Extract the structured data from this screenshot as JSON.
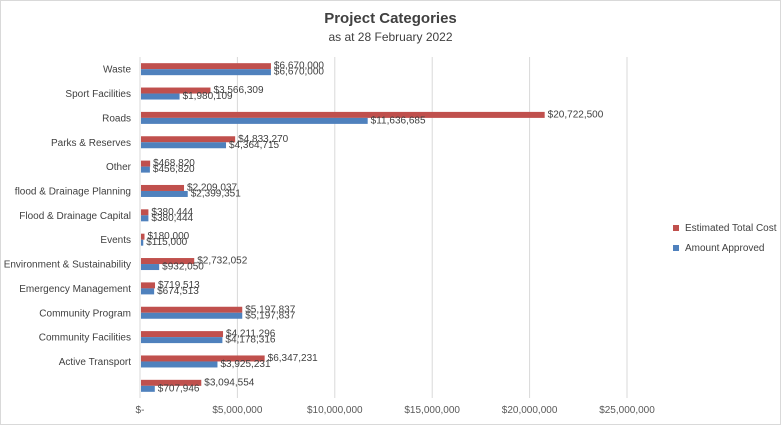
{
  "chart_data": {
    "type": "bar",
    "orientation": "horizontal",
    "title": "Project Categories",
    "subtitle": "as at 28 February 2022",
    "categories": [
      "Waste",
      "Sport Facilities",
      "Roads",
      "Parks & Reserves",
      "Other",
      "flood & Drainage Planning",
      "Flood & Drainage Capital",
      "Events",
      "Environment & Sustainability",
      "Emergency Management",
      "Community Program",
      "Community Facilities",
      "Active Transport",
      ""
    ],
    "series": [
      {
        "name": "Estimated Total Cost",
        "color": "#c0504d",
        "values": [
          6670000,
          3566309,
          20722500,
          4833270,
          468820,
          2209037,
          380444,
          180000,
          2732052,
          719513,
          5197837,
          4211296,
          6347231,
          3094554
        ],
        "labels": [
          "$6,670,000",
          "$3,566,309",
          "$20,722,500",
          "$4,833,270",
          "$468,820",
          "$2,209,037",
          "$380,444",
          "$180,000",
          "$2,732,052",
          "$719,513",
          "$5,197,837",
          "$4,211,296",
          "$6,347,231",
          "$3,094,554"
        ]
      },
      {
        "name": "Amount Approved",
        "color": "#4f81bd",
        "values": [
          6670000,
          1980109,
          11636685,
          4364715,
          456820,
          2399351,
          380444,
          115000,
          932050,
          674513,
          5197837,
          4178316,
          3925231,
          707946
        ],
        "labels": [
          "$6,670,000",
          "$1,980,109",
          "$11,636,685",
          "$4,364,715",
          "$456,820",
          "$2,399,351",
          "$380,444",
          "$115,000",
          "$932,050",
          "$674,513",
          "$5,197,837",
          "$4,178,316",
          "$3,925,231",
          "$707,946"
        ]
      }
    ],
    "xlim": [
      0,
      25000000
    ],
    "x_ticks": [
      0,
      5000000,
      10000000,
      15000000,
      20000000,
      25000000
    ],
    "x_tick_labels": [
      "$-",
      "$5,000,000",
      "$10,000,000",
      "$15,000,000",
      "$20,000,000",
      "$25,000,000"
    ],
    "grid": true,
    "legend_position": "right"
  }
}
